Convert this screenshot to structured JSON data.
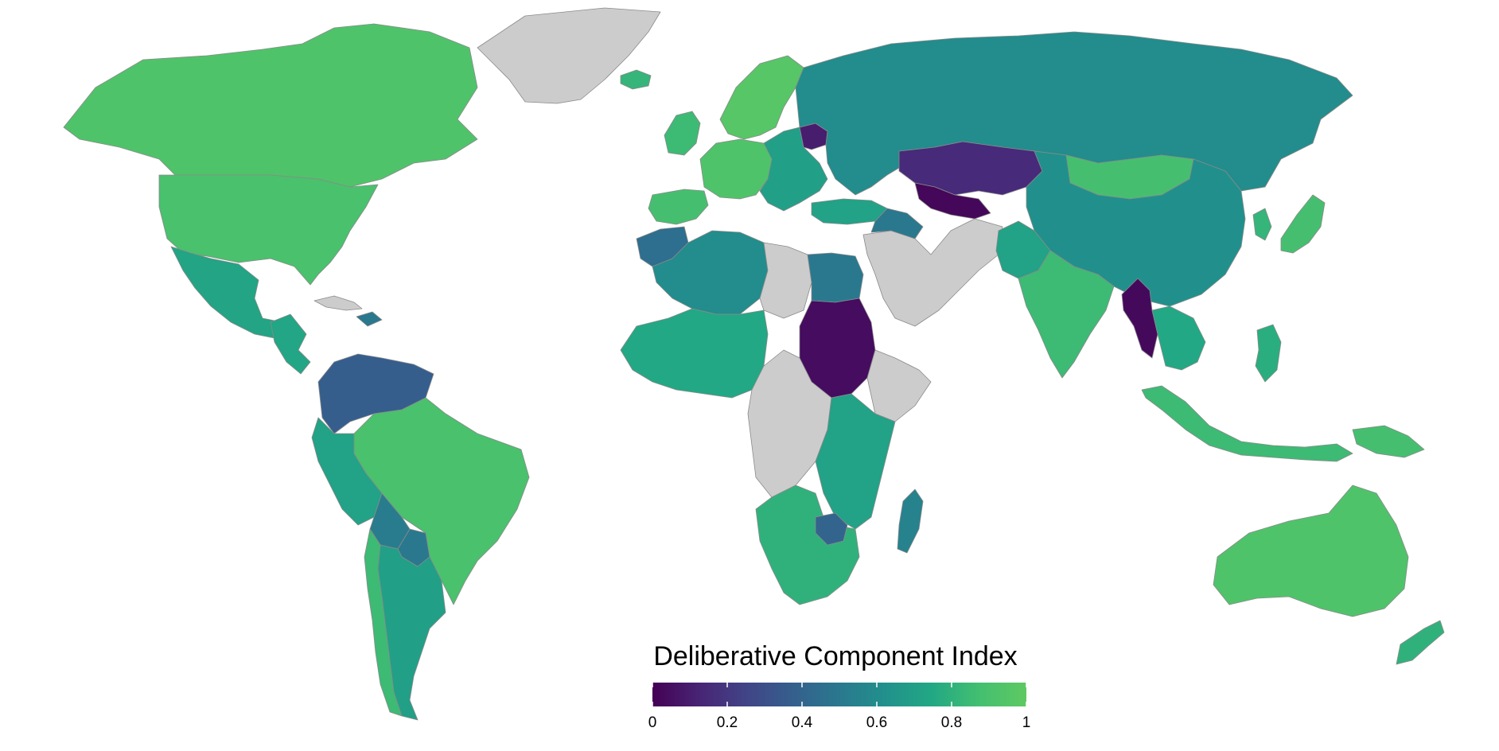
{
  "legend": {
    "title": "Deliberative Component Index",
    "ticks": [
      "0",
      "0.2",
      "0.4",
      "0.6",
      "0.8",
      "1"
    ],
    "tick_values": [
      0,
      0.2,
      0.4,
      0.6,
      0.8,
      1
    ],
    "min": 0,
    "max": 1,
    "colormap": [
      "#440154",
      "#482475",
      "#414487",
      "#355f8d",
      "#2a788e",
      "#21918c",
      "#22a884",
      "#44bf70",
      "#5ec962"
    ],
    "no_data_color": "#cccccc"
  },
  "regions": [
    {
      "name": "Canada",
      "value": 0.93
    },
    {
      "name": "United States",
      "value": 0.9
    },
    {
      "name": "Greenland",
      "value": null
    },
    {
      "name": "Mexico",
      "value": 0.73
    },
    {
      "name": "Central America",
      "value": 0.74
    },
    {
      "name": "Cuba",
      "value": null
    },
    {
      "name": "Venezuela",
      "value": 0.37
    },
    {
      "name": "Brazil",
      "value": 0.9
    },
    {
      "name": "Andes",
      "value": 0.72
    },
    {
      "name": "Bolivia",
      "value": 0.52
    },
    {
      "name": "Paraguay",
      "value": 0.5
    },
    {
      "name": "Argentina",
      "value": 0.7
    },
    {
      "name": "Chile",
      "value": 0.85
    },
    {
      "name": "Iceland",
      "value": 0.82
    },
    {
      "name": "Scandinavia",
      "value": 0.96
    },
    {
      "name": "UK and Ireland",
      "value": 0.85
    },
    {
      "name": "Western Europe",
      "value": 0.93
    },
    {
      "name": "Iberia",
      "value": 0.88
    },
    {
      "name": "Eastern Europe",
      "value": 0.7
    },
    {
      "name": "Belarus",
      "value": 0.1
    },
    {
      "name": "Turkey",
      "value": 0.72
    },
    {
      "name": "Russia",
      "value": 0.6
    },
    {
      "name": "Kazakhstan",
      "value": 0.15
    },
    {
      "name": "Turkmenistan",
      "value": 0.02
    },
    {
      "name": "Middle East",
      "value": null
    },
    {
      "name": "Syria and Iraq",
      "value": 0.5
    },
    {
      "name": "Mongolia",
      "value": 0.88
    },
    {
      "name": "China",
      "value": 0.62
    },
    {
      "name": "India",
      "value": 0.85
    },
    {
      "name": "Pakistan",
      "value": 0.72
    },
    {
      "name": "Myanmar",
      "value": 0.03
    },
    {
      "name": "Japan",
      "value": 0.88
    },
    {
      "name": "Korea",
      "value": 0.82
    },
    {
      "name": "Southeast Asia",
      "value": 0.75
    },
    {
      "name": "Indonesia",
      "value": 0.85
    },
    {
      "name": "Philippines",
      "value": 0.78
    },
    {
      "name": "Papua New Guinea",
      "value": 0.88
    },
    {
      "name": "Australia",
      "value": 0.93
    },
    {
      "name": "New Zealand",
      "value": 0.8
    },
    {
      "name": "North Africa",
      "value": 0.6
    },
    {
      "name": "Morocco",
      "value": 0.45
    },
    {
      "name": "Egypt",
      "value": 0.5
    },
    {
      "name": "Sudan",
      "value": 0.04
    },
    {
      "name": "Libya",
      "value": null
    },
    {
      "name": "West Africa",
      "value": 0.75
    },
    {
      "name": "Central Africa",
      "value": null
    },
    {
      "name": "Ethiopia and Horn",
      "value": null
    },
    {
      "name": "East Africa",
      "value": 0.72
    },
    {
      "name": "Southern Africa",
      "value": 0.8
    },
    {
      "name": "Zimbabwe",
      "value": 0.4
    },
    {
      "name": "Madagascar",
      "value": 0.55
    },
    {
      "name": "Caribbean",
      "value": 0.5
    }
  ]
}
